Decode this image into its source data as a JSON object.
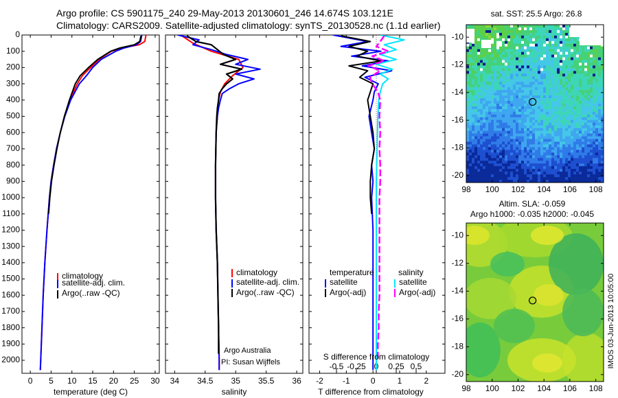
{
  "header": {
    "title_line1": "Argo profile: CS 5901175_240 29-May-2013 20130601_246 14.674S 103.121E",
    "title_line2": "Climatology: CARS2009. Satellite-adjusted climatology: synTS_20130528.nc (1.1d earlier)"
  },
  "colors": {
    "climatology": "#ff0000",
    "satellite": "#0000ff",
    "argo": "#000000",
    "salinity_sat": "#00e5ff",
    "salinity_argo": "#ff00ff"
  },
  "chart_data": [
    {
      "id": "temperature",
      "type": "line",
      "xlabel": "temperature (deg C)",
      "ylabel": "",
      "xlim": [
        -2,
        31
      ],
      "ylim": [
        2080,
        0
      ],
      "xticks": [
        0,
        5,
        10,
        15,
        20,
        25,
        30
      ],
      "yticks": [
        0,
        100,
        200,
        300,
        400,
        500,
        600,
        700,
        800,
        900,
        1000,
        1100,
        1200,
        1300,
        1400,
        1500,
        1600,
        1700,
        1800,
        1900,
        2000
      ],
      "legend": [
        "climatology",
        "satellite-adj. clim.",
        "Argo(..raw -QC)"
      ],
      "series": [
        {
          "name": "climatology",
          "color": "#ff0000",
          "depth": [
            0,
            40,
            60,
            80,
            100,
            150,
            200,
            250,
            300,
            400,
            500,
            600,
            700,
            800,
            900,
            1000,
            1200,
            1400,
            1600,
            1800,
            2000,
            2060
          ],
          "values": [
            27.8,
            27.5,
            26.2,
            22,
            19.5,
            16.5,
            14.5,
            12.5,
            11.3,
            9.5,
            8.2,
            7.2,
            6.3,
            5.6,
            5.0,
            4.6,
            4.0,
            3.5,
            3.1,
            2.8,
            2.5,
            2.4
          ]
        },
        {
          "name": "satellite-adj. clim.",
          "color": "#0000ff",
          "depth": [
            0,
            40,
            60,
            80,
            100,
            150,
            200,
            250,
            300,
            400,
            500,
            600,
            700,
            800,
            900,
            1000,
            1200,
            1400,
            1600,
            1800,
            2000,
            2060
          ],
          "values": [
            26.8,
            26.5,
            25.5,
            22.5,
            20.5,
            17,
            15,
            13.5,
            11.8,
            9.7,
            8.3,
            7.2,
            6.3,
            5.6,
            5.0,
            4.6,
            4.0,
            3.5,
            3.1,
            2.8,
            2.5,
            2.4
          ]
        },
        {
          "name": "Argo",
          "color": "#000000",
          "depth": [
            5,
            40,
            60,
            80,
            100,
            150,
            200,
            250,
            300,
            400,
            500,
            600,
            700,
            800,
            900,
            1000,
            1100
          ],
          "values": [
            26.6,
            26.3,
            25.0,
            21.5,
            19.3,
            16.2,
            14.0,
            12.0,
            10.8,
            9.4,
            8.2,
            7.2,
            6.4,
            5.7,
            5.1,
            4.7,
            4.4
          ]
        }
      ]
    },
    {
      "id": "salinity",
      "type": "line",
      "xlabel": "salinity",
      "xlim": [
        33.85,
        36.1
      ],
      "ylim": [
        2080,
        0
      ],
      "xticks": [
        34,
        34.5,
        35,
        35.5,
        36
      ],
      "legend": [
        "climatology",
        "satellite-adj. clim.",
        "Argo(..raw -QC)"
      ],
      "credit_line1": "Argo Australia",
      "credit_line2": "PI: Susan Wijffels",
      "series": [
        {
          "name": "climatology",
          "color": "#ff0000",
          "depth": [
            0,
            50,
            100,
            150,
            200,
            250,
            300,
            350,
            400,
            450,
            500,
            600,
            800,
            1000,
            1200,
            1400,
            1600,
            1800,
            2000,
            2060
          ],
          "values": [
            34.1,
            34.3,
            34.6,
            35.05,
            35.12,
            34.95,
            34.82,
            34.75,
            34.72,
            34.7,
            34.7,
            34.68,
            34.67,
            34.67,
            34.68,
            34.7,
            34.71,
            34.72,
            34.73,
            34.73
          ]
        },
        {
          "name": "satellite-adj. clim.",
          "color": "#0000ff",
          "depth": [
            0,
            30,
            60,
            90,
            120,
            150,
            180,
            210,
            240,
            270,
            300,
            330,
            360,
            400,
            450,
            500,
            600,
            800,
            1000,
            1200,
            1400,
            1600,
            1800,
            2000,
            2060
          ],
          "values": [
            34.05,
            34.4,
            34.3,
            34.6,
            34.85,
            35.2,
            35.0,
            35.4,
            35.0,
            35.3,
            35.05,
            34.9,
            34.78,
            34.75,
            34.72,
            34.7,
            34.68,
            34.67,
            34.67,
            34.68,
            34.7,
            34.71,
            34.72,
            34.73,
            34.73
          ]
        },
        {
          "name": "Argo",
          "color": "#000000",
          "depth": [
            5,
            40,
            60,
            90,
            120,
            150,
            180,
            210,
            240,
            270,
            300,
            330,
            360,
            400,
            450,
            500,
            600,
            800,
            1000,
            1200,
            1400,
            1600,
            1800,
            1900,
            1960
          ],
          "values": [
            34.2,
            34.35,
            34.6,
            34.7,
            34.8,
            35.0,
            34.75,
            35.1,
            34.85,
            34.95,
            34.85,
            34.78,
            34.73,
            34.72,
            34.7,
            34.69,
            34.68,
            34.67,
            34.67,
            34.68,
            34.7,
            34.71,
            34.72,
            34.72,
            34.72
          ]
        }
      ]
    },
    {
      "id": "difference",
      "type": "line",
      "xlabel": "T difference from climatology",
      "top_axis_label": "S difference from climatology",
      "xlim": [
        -2.4,
        2.7
      ],
      "ylim": [
        2080,
        0
      ],
      "xticks": [
        -2,
        -1,
        0,
        1,
        2
      ],
      "top_ticks": [
        -0.5,
        -0.25,
        0,
        0.25,
        0.5
      ],
      "top_tick_labels": [
        "-0.5",
        "-0.25",
        "0",
        "0.25",
        "0.5"
      ],
      "legend_temperature_title": "temperature",
      "legend_salinity_title": "salinity",
      "legend_temperature": [
        "satellite",
        "Argo(-adj)"
      ],
      "legend_salinity": [
        "satellite",
        "Argo(-adj)"
      ],
      "series": [
        {
          "name": "T satellite",
          "color": "#0000ff",
          "depth": [
            0,
            40,
            70,
            100,
            130,
            160,
            190,
            220,
            260,
            300,
            350,
            400,
            500,
            600,
            700,
            800,
            900,
            1000,
            1200,
            1400,
            1600,
            1800,
            2000,
            2060
          ],
          "values": [
            -1.5,
            -0.2,
            -1.2,
            0.3,
            -0.8,
            0.6,
            -0.4,
            0.7,
            -0.3,
            0.2,
            0.05,
            0.0,
            -0.15,
            -0.05,
            0.05,
            -0.05,
            0.0,
            -0.05,
            0.0,
            0.0,
            0.0,
            0.0,
            0.0,
            0.0
          ]
        },
        {
          "name": "T Argo",
          "color": "#000000",
          "depth": [
            5,
            40,
            70,
            100,
            130,
            160,
            190,
            220,
            260,
            300,
            350,
            400,
            500,
            600,
            700,
            800,
            900,
            1000,
            1100
          ],
          "values": [
            -1.2,
            -0.1,
            -0.9,
            -0.2,
            -0.6,
            0.3,
            -0.9,
            -0.2,
            -0.5,
            0.0,
            -0.1,
            -0.2,
            -0.1,
            0.0,
            0.05,
            -0.05,
            -0.1,
            -0.1,
            -0.05
          ]
        },
        {
          "name": "S satellite",
          "color": "#00e5ff",
          "depth": [
            0,
            30,
            60,
            90,
            120,
            150,
            180,
            210,
            240,
            270,
            300,
            350,
            400,
            500,
            700,
            900,
            1200,
            1600,
            2000,
            2060
          ],
          "values": [
            0.05,
            0.35,
            0.1,
            0.25,
            0.05,
            0.25,
            0.0,
            0.2,
            0.05,
            0.15,
            0.08,
            0.05,
            0.03,
            0.02,
            0.01,
            0.0,
            0.0,
            0.0,
            0.0,
            0.0
          ]
        },
        {
          "name": "S Argo",
          "color": "#ff00ff",
          "depth": [
            5,
            40,
            70,
            100,
            130,
            160,
            190,
            220,
            260,
            300,
            350,
            400,
            500,
            600,
            700,
            800,
            900,
            1000,
            1100,
            1200,
            1300,
            1400,
            1500,
            1600,
            1700,
            1800,
            1900,
            2000
          ],
          "values": [
            0.1,
            0.05,
            0.0,
            0.15,
            -0.05,
            0.1,
            -0.1,
            0.05,
            -0.08,
            -0.05,
            0.02,
            0.05,
            0.04,
            0.05,
            0.04,
            0.05,
            0.05,
            0.04,
            0.04,
            0.04,
            0.04,
            0.04,
            0.04,
            0.04,
            0.03,
            0.03,
            0.02,
            0.02
          ]
        }
      ]
    },
    {
      "id": "sst_map",
      "type": "heatmap",
      "title": "sat. SST: 25.5  Argo: 26.8",
      "xlim": [
        98,
        108.6
      ],
      "ylim": [
        -20.5,
        -9.1
      ],
      "xticks": [
        98,
        100,
        102,
        104,
        106,
        108
      ],
      "yticks": [
        -10,
        -12,
        -14,
        -16,
        -18,
        -20
      ],
      "marker": {
        "lon": 103.121,
        "lat": -14.674
      }
    },
    {
      "id": "sla_map",
      "type": "heatmap",
      "title_line1": "Altim. SLA: -0.059",
      "title_line2": "Argo h1000: -0.035  h2000: -0.045",
      "xlim": [
        98,
        108.6
      ],
      "ylim": [
        -20.5,
        -9.1
      ],
      "xticks": [
        98,
        100,
        102,
        104,
        106,
        108
      ],
      "yticks": [
        -10,
        -12,
        -14,
        -16,
        -18,
        -20
      ],
      "marker": {
        "lon": 103.121,
        "lat": -14.674
      }
    }
  ],
  "footer": {
    "timestamp": "IMOS 03-Jun-2013 10:05:00"
  }
}
